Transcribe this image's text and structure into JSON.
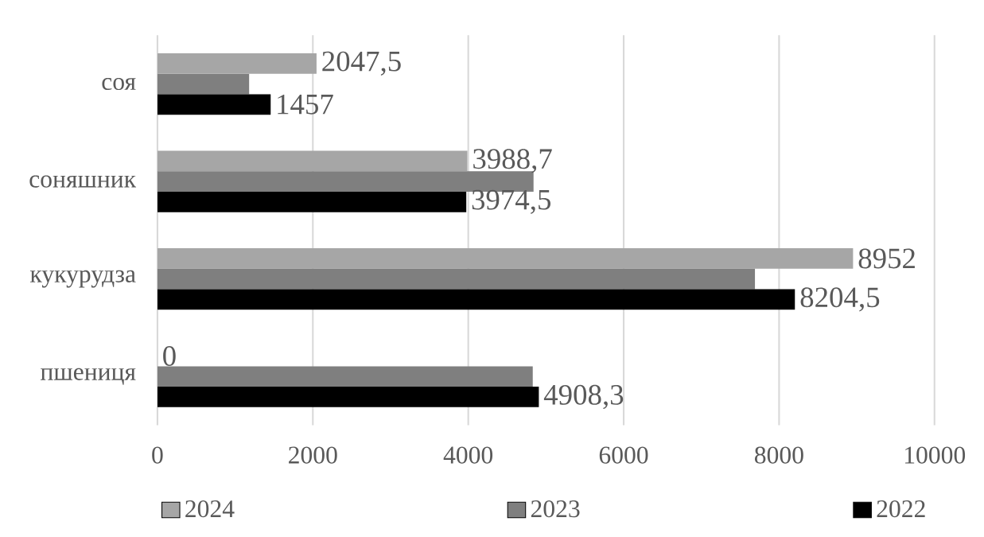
{
  "chart_data": {
    "type": "bar",
    "orientation": "horizontal",
    "categories": [
      "соя",
      "соняшник",
      "кукурудза",
      "пшениця"
    ],
    "series": [
      {
        "name": "2024",
        "color": "#a6a6a6",
        "values": [
          2047.5,
          3988.7,
          8952,
          0
        ],
        "value_labels": [
          "2047,5",
          "3988,7",
          "8952",
          "0"
        ]
      },
      {
        "name": "2023",
        "color": "#7f7f7f",
        "values": [
          1180,
          4840,
          7690,
          4830
        ]
      },
      {
        "name": "2022",
        "color": "#000000",
        "values": [
          1457,
          3974.5,
          8204.5,
          4908.3
        ],
        "value_labels": [
          "1457",
          "3974,5",
          "8204,5",
          "4908,3"
        ]
      }
    ],
    "xlim": [
      0,
      10000
    ],
    "xticks": [
      0,
      2000,
      4000,
      6000,
      8000,
      10000
    ],
    "grid": "x",
    "legend": "bottom"
  }
}
